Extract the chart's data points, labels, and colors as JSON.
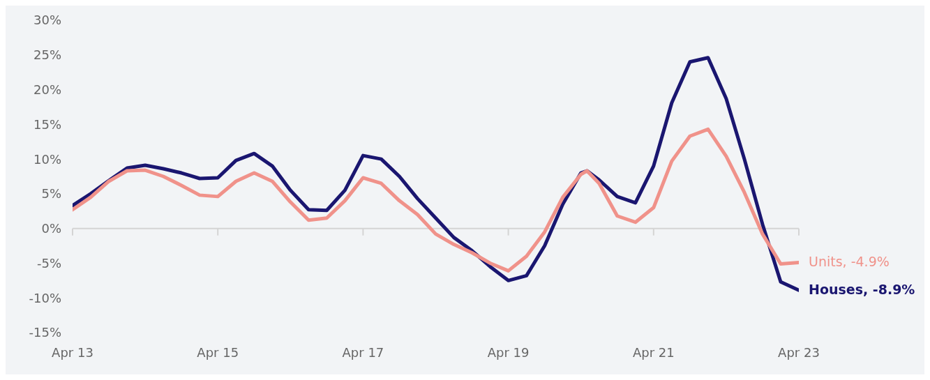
{
  "chart_data": {
    "type": "line",
    "x": [
      "2013-04",
      "2013-07",
      "2013-10",
      "2014-01",
      "2014-04",
      "2014-07",
      "2014-10",
      "2015-01",
      "2015-04",
      "2015-07",
      "2015-10",
      "2016-01",
      "2016-04",
      "2016-07",
      "2016-10",
      "2017-01",
      "2017-04",
      "2017-07",
      "2017-10",
      "2018-01",
      "2018-04",
      "2018-07",
      "2018-10",
      "2019-01",
      "2019-04",
      "2019-07",
      "2019-10",
      "2020-01",
      "2020-04",
      "2020-05",
      "2020-07",
      "2020-10",
      "2021-01",
      "2021-04",
      "2021-07",
      "2021-10",
      "2022-01",
      "2022-04",
      "2022-07",
      "2022-10",
      "2023-01",
      "2023-04"
    ],
    "series": [
      {
        "color": "#1a1670",
        "values": [
          3.3,
          5.0,
          6.9,
          8.7,
          9.1,
          8.6,
          8.0,
          7.2,
          7.3,
          9.8,
          10.8,
          9.0,
          5.5,
          2.7,
          2.6,
          5.5,
          10.5,
          10.0,
          7.5,
          4.3,
          1.5,
          -1.3,
          -3.2,
          -5.5,
          -7.5,
          -6.8,
          -2.5,
          3.5,
          8.0,
          8.3,
          7.0,
          4.6,
          3.7,
          9.0,
          18.1,
          24.0,
          24.6,
          18.7,
          10.0,
          0.6,
          -7.7,
          -8.9
        ]
      },
      {
        "color": "#f0928a",
        "values": [
          2.7,
          4.5,
          6.8,
          8.3,
          8.4,
          7.5,
          6.2,
          4.8,
          4.6,
          6.8,
          8.0,
          6.8,
          3.8,
          1.2,
          1.5,
          4.0,
          7.3,
          6.5,
          4.0,
          2.0,
          -0.8,
          -2.3,
          -3.5,
          -5.0,
          -6.1,
          -4.0,
          -0.5,
          4.5,
          7.8,
          8.3,
          6.5,
          1.8,
          0.9,
          3.0,
          9.7,
          13.3,
          14.3,
          10.4,
          5.2,
          -0.8,
          -5.1,
          -4.9
        ]
      }
    ],
    "annotations": [
      {
        "text": "Houses, -8.9%",
        "x": "2023-04",
        "y": -8.9
      },
      {
        "text": "Units, -4.9%",
        "x": "2023-04",
        "y": -4.9
      }
    ],
    "xlim": [
      "2013-04",
      "2023-04"
    ],
    "xticks": [
      {
        "value": "2013-04",
        "label": "Apr 13"
      },
      {
        "value": "2015-04",
        "label": "Apr 15"
      },
      {
        "value": "2017-04",
        "label": "Apr 17"
      },
      {
        "value": "2019-04",
        "label": "Apr 19"
      },
      {
        "value": "2021-04",
        "label": "Apr 21"
      },
      {
        "value": "2023-04",
        "label": "Apr 23"
      }
    ],
    "ylim": [
      -15,
      30
    ],
    "yticks": [
      {
        "value": -15,
        "label": "-15%"
      },
      {
        "value": -10,
        "label": "-10%"
      },
      {
        "value": -5,
        "label": "-5%"
      },
      {
        "value": 0,
        "label": "0%"
      },
      {
        "value": 5,
        "label": "5%"
      },
      {
        "value": 10,
        "label": "10%"
      },
      {
        "value": 15,
        "label": "15%"
      },
      {
        "value": 20,
        "label": "20%"
      },
      {
        "value": 25,
        "label": "25%"
      },
      {
        "value": 30,
        "label": "30%"
      }
    ],
    "ref_lines": [
      {
        "axis": "y",
        "value": 0,
        "color": "#d4d4d4"
      }
    ],
    "grid": false,
    "legend": false,
    "marker": "none",
    "line_style": "solid"
  }
}
